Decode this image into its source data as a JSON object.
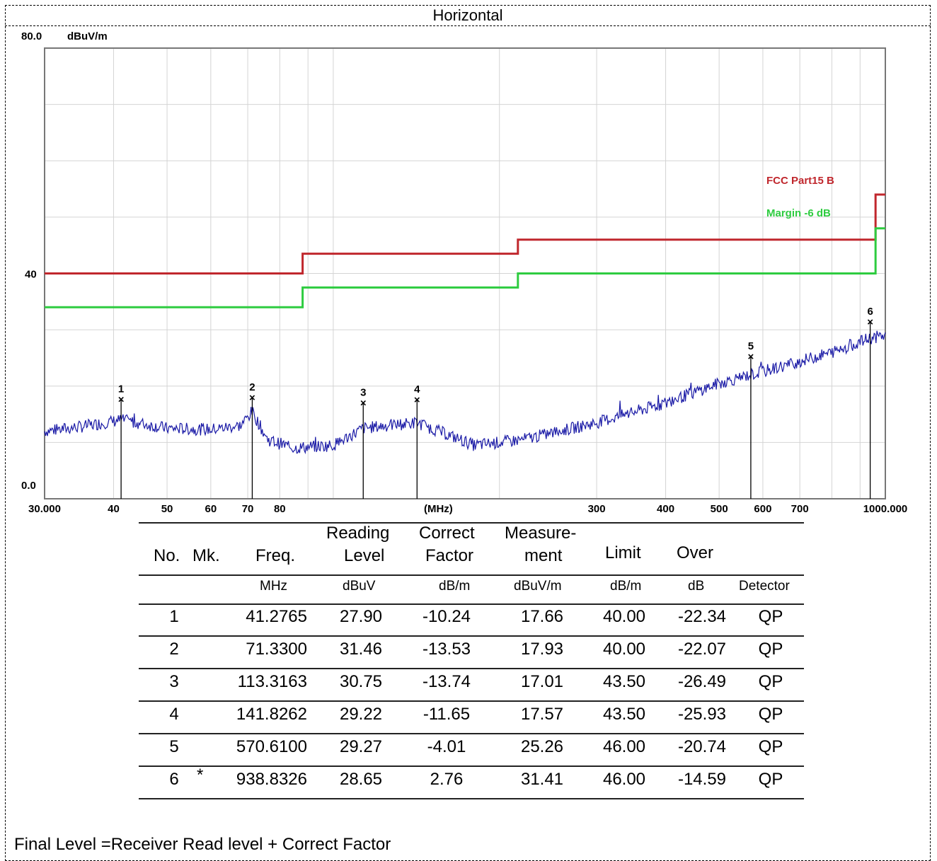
{
  "title": "Horizontal",
  "chart_data": {
    "type": "line",
    "xscale": "log",
    "xlim": [
      30,
      1000
    ],
    "ylim": [
      0,
      80
    ],
    "ylabel": "dBuV/m",
    "xlabel": "(MHz)",
    "y_ticks": [
      "80.0",
      "40",
      "0.0"
    ],
    "x_ticks": [
      "30.000",
      "40",
      "50",
      "60",
      "70",
      "80",
      "300",
      "400",
      "500",
      "600",
      "700",
      "1000.000"
    ],
    "grid": true,
    "series": [
      {
        "name": "FCC Part15 B",
        "color": "#c0272d",
        "steps": [
          [
            30,
            40.0
          ],
          [
            88,
            43.5
          ],
          [
            216,
            46.0
          ],
          [
            960,
            54.0
          ],
          [
            1000,
            54.0
          ]
        ]
      },
      {
        "name": "Margin -6 dB",
        "color": "#2ecc40",
        "steps": [
          [
            30,
            34.0
          ],
          [
            88,
            37.5
          ],
          [
            216,
            40.0
          ],
          [
            960,
            48.0
          ],
          [
            1000,
            48.0
          ]
        ]
      },
      {
        "name": "",
        "color": "#1a1aa6",
        "anchors": [
          [
            30,
            12.0
          ],
          [
            35,
            12.8
          ],
          [
            41.3,
            14.0
          ],
          [
            50,
            12.5
          ],
          [
            60,
            12.3
          ],
          [
            68,
            13.0
          ],
          [
            71.3,
            15.5
          ],
          [
            76,
            10.5
          ],
          [
            85,
            9.0
          ],
          [
            100,
            9.5
          ],
          [
            113.3,
            12.5
          ],
          [
            125,
            13.0
          ],
          [
            141.8,
            13.5
          ],
          [
            160,
            11.5
          ],
          [
            180,
            9.5
          ],
          [
            220,
            10.5
          ],
          [
            300,
            13.5
          ],
          [
            400,
            17.0
          ],
          [
            500,
            20.5
          ],
          [
            570,
            22.0
          ],
          [
            650,
            23.5
          ],
          [
            800,
            26.0
          ],
          [
            938.8,
            28.5
          ],
          [
            1000,
            29.0
          ]
        ]
      }
    ],
    "markers": [
      {
        "no": "1",
        "freq": 41.2765,
        "level": 17.66
      },
      {
        "no": "2",
        "freq": 71.33,
        "level": 17.93
      },
      {
        "no": "3",
        "freq": 113.3163,
        "level": 17.01
      },
      {
        "no": "4",
        "freq": 141.8262,
        "level": 17.57
      },
      {
        "no": "5",
        "freq": 570.61,
        "level": 25.26
      },
      {
        "no": "6",
        "freq": 938.8326,
        "level": 31.41
      }
    ]
  },
  "table": {
    "headers": {
      "no": "No.",
      "mk": "Mk.",
      "freq": "Freq.",
      "reading1": "Reading",
      "reading2": "Level",
      "correct1": "Correct",
      "correct2": "Factor",
      "measure1": "Measure-",
      "measure2": "ment",
      "limit": "Limit",
      "over": "Over"
    },
    "units": {
      "freq": "MHz",
      "reading": "dBuV",
      "correct": "dB/m",
      "measure": "dBuV/m",
      "limit": "dB/m",
      "over": "dB",
      "detector": "Detector"
    },
    "rows": [
      {
        "no": "1",
        "mk": "",
        "freq": "41.2765",
        "reading": "27.90",
        "correct": "-10.24",
        "measure": "17.66",
        "limit": "40.00",
        "over": "-22.34",
        "detector": "QP"
      },
      {
        "no": "2",
        "mk": "",
        "freq": "71.3300",
        "reading": "31.46",
        "correct": "-13.53",
        "measure": "17.93",
        "limit": "40.00",
        "over": "-22.07",
        "detector": "QP"
      },
      {
        "no": "3",
        "mk": "",
        "freq": "113.3163",
        "reading": "30.75",
        "correct": "-13.74",
        "measure": "17.01",
        "limit": "43.50",
        "over": "-26.49",
        "detector": "QP"
      },
      {
        "no": "4",
        "mk": "",
        "freq": "141.8262",
        "reading": "29.22",
        "correct": "-11.65",
        "measure": "17.57",
        "limit": "43.50",
        "over": "-25.93",
        "detector": "QP"
      },
      {
        "no": "5",
        "mk": "",
        "freq": "570.6100",
        "reading": "29.27",
        "correct": "-4.01",
        "measure": "25.26",
        "limit": "46.00",
        "over": "-20.74",
        "detector": "QP"
      },
      {
        "no": "6",
        "mk": "*",
        "freq": "938.8326",
        "reading": "28.65",
        "correct": "2.76",
        "measure": "31.41",
        "limit": "46.00",
        "over": "-14.59",
        "detector": "QP"
      }
    ]
  },
  "footnote": "Final Level =Receiver Read level + Correct Factor"
}
